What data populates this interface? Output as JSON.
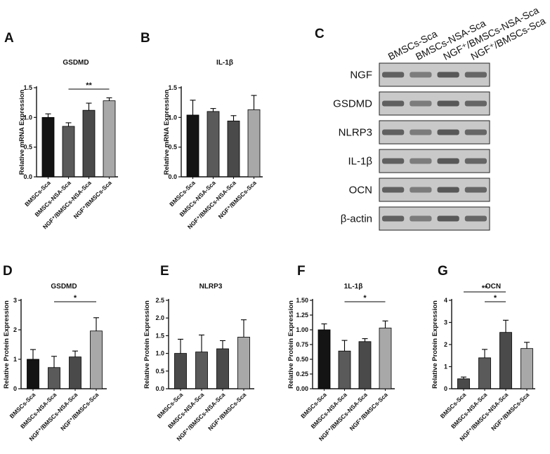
{
  "panel_labels": [
    "A",
    "B",
    "C",
    "D",
    "E",
    "F",
    "G"
  ],
  "colors": {
    "bar_black": "#141414",
    "bar_dark_gray": "#5a5a5a",
    "bar_mid_gray": "#4a4a4a",
    "bar_light_gray": "#a8a8a8",
    "axis": "#111111",
    "blot_bg": "#c9c9c9",
    "blot_band": "#3c3c3c"
  },
  "chart_data": [
    {
      "type": "bar",
      "panel": "A",
      "title": "GSDMD",
      "ylabel": "Relative mRNA Expression",
      "categories": [
        "BMSCs-Sca",
        "BMSCs-NSA-Sca",
        "NGF⁺/BMSCs-NSA-Sca",
        "NGF⁺/BMSCs-Sca"
      ],
      "values": [
        1.0,
        0.85,
        1.12,
        1.28
      ],
      "errors": [
        0.06,
        0.06,
        0.12,
        0.05
      ],
      "ylim": [
        0,
        1.5
      ],
      "yticks": [
        "0.0",
        "0.5",
        "1.0",
        "1.5"
      ],
      "bar_colors": [
        "#141414",
        "#5a5a5a",
        "#4a4a4a",
        "#a8a8a8"
      ],
      "significance": [
        {
          "from": 1,
          "to": 3,
          "label": "**"
        }
      ]
    },
    {
      "type": "bar",
      "panel": "B",
      "title": "IL-1β",
      "ylabel": "Relative mRNA Expression",
      "categories": [
        "BMSCs-Sca",
        "BMSCs-NSA-Sca",
        "NGF⁺/BMSCs-NSA-Sca",
        "NGF⁺/BMSCs-Sca"
      ],
      "values": [
        1.04,
        1.1,
        0.94,
        1.13
      ],
      "errors": [
        0.25,
        0.05,
        0.09,
        0.24
      ],
      "ylim": [
        0,
        1.5
      ],
      "yticks": [
        "0.0",
        "0.5",
        "1.0",
        "1.5"
      ],
      "bar_colors": [
        "#141414",
        "#5a5a5a",
        "#4a4a4a",
        "#a8a8a8"
      ],
      "significance": []
    },
    {
      "type": "bar",
      "panel": "D",
      "title": "GSDMD",
      "ylabel": "Relative Protein Expression",
      "categories": [
        "BMSCs-Sca",
        "BMSCs-NSA-Sca",
        "NGF⁺/BMSCs-NSA-Sca",
        "NGF⁺/BMSCs-Sca"
      ],
      "values": [
        1.0,
        0.72,
        1.08,
        1.96
      ],
      "errors": [
        0.33,
        0.38,
        0.2,
        0.45
      ],
      "ylim": [
        0,
        3
      ],
      "yticks": [
        "0",
        "1",
        "2",
        "3"
      ],
      "bar_colors": [
        "#141414",
        "#5a5a5a",
        "#4a4a4a",
        "#a8a8a8"
      ],
      "significance": [
        {
          "from": 1,
          "to": 3,
          "label": "*"
        }
      ]
    },
    {
      "type": "bar",
      "panel": "E",
      "title": "NLRP3",
      "ylabel": "Relative Protein Expression",
      "categories": [
        "BMSCs-Sca",
        "BMSCs-NSA-Sca",
        "NGF⁺/BMSCs-NSA-Sca",
        "NGF⁺/BMSCs-Sca"
      ],
      "values": [
        1.0,
        1.04,
        1.13,
        1.46
      ],
      "errors": [
        0.4,
        0.48,
        0.23,
        0.49
      ],
      "ylim": [
        0,
        2.5
      ],
      "yticks": [
        "0.0",
        "0.5",
        "1.0",
        "1.5",
        "2.0",
        "2.5"
      ],
      "bar_colors": [
        "#4a4a4a",
        "#5a5a5a",
        "#4a4a4a",
        "#a8a8a8"
      ],
      "significance": []
    },
    {
      "type": "bar",
      "panel": "F",
      "title": "1L-1β",
      "ylabel": "Relative Protein Expression",
      "categories": [
        "BMSCs-Sca",
        "BMSCs-NSA-Sca",
        "NGF⁺/BMSCs-NSA-Sca",
        "NGF⁺/BMSCs-Sca"
      ],
      "values": [
        1.0,
        0.64,
        0.8,
        1.03
      ],
      "errors": [
        0.1,
        0.18,
        0.05,
        0.12
      ],
      "ylim": [
        0,
        1.5
      ],
      "yticks": [
        "0.00",
        "0.25",
        "0.50",
        "0.75",
        "1.00",
        "1.25",
        "1.50"
      ],
      "bar_colors": [
        "#141414",
        "#5a5a5a",
        "#4a4a4a",
        "#a8a8a8"
      ],
      "significance": [
        {
          "from": 1,
          "to": 3,
          "label": "*"
        }
      ]
    },
    {
      "type": "bar",
      "panel": "G",
      "title": "OCN",
      "ylabel": "Relative Protein Expression",
      "categories": [
        "BMSCs-Sca",
        "BMSCs-NSA-Sca",
        "NGF⁺/BMSCs-NSA-Sca",
        "NGF⁺/BMSCs-Sca"
      ],
      "values": [
        0.45,
        1.4,
        2.55,
        1.82
      ],
      "errors": [
        0.08,
        0.38,
        0.55,
        0.28
      ],
      "ylim": [
        0,
        4
      ],
      "yticks": [
        "0",
        "1",
        "2",
        "3",
        "4"
      ],
      "bar_colors": [
        "#4a4a4a",
        "#5a5a5a",
        "#4a4a4a",
        "#a8a8a8"
      ],
      "significance": [
        {
          "from": 1,
          "to": 2,
          "label": "*"
        },
        {
          "from": 0,
          "to": 2,
          "label": "**"
        }
      ]
    }
  ],
  "western_blot": {
    "panel": "C",
    "columns": [
      "BMSCs-Sca",
      "BMSCs-NSA-Sca",
      "NGF⁺/BMSCs-NSA-Sca",
      "NGF⁺/BMSCs-Sca"
    ],
    "rows": [
      "NGF",
      "GSDMD",
      "NLRP3",
      "IL-1β",
      "OCN",
      "β-actin"
    ]
  }
}
